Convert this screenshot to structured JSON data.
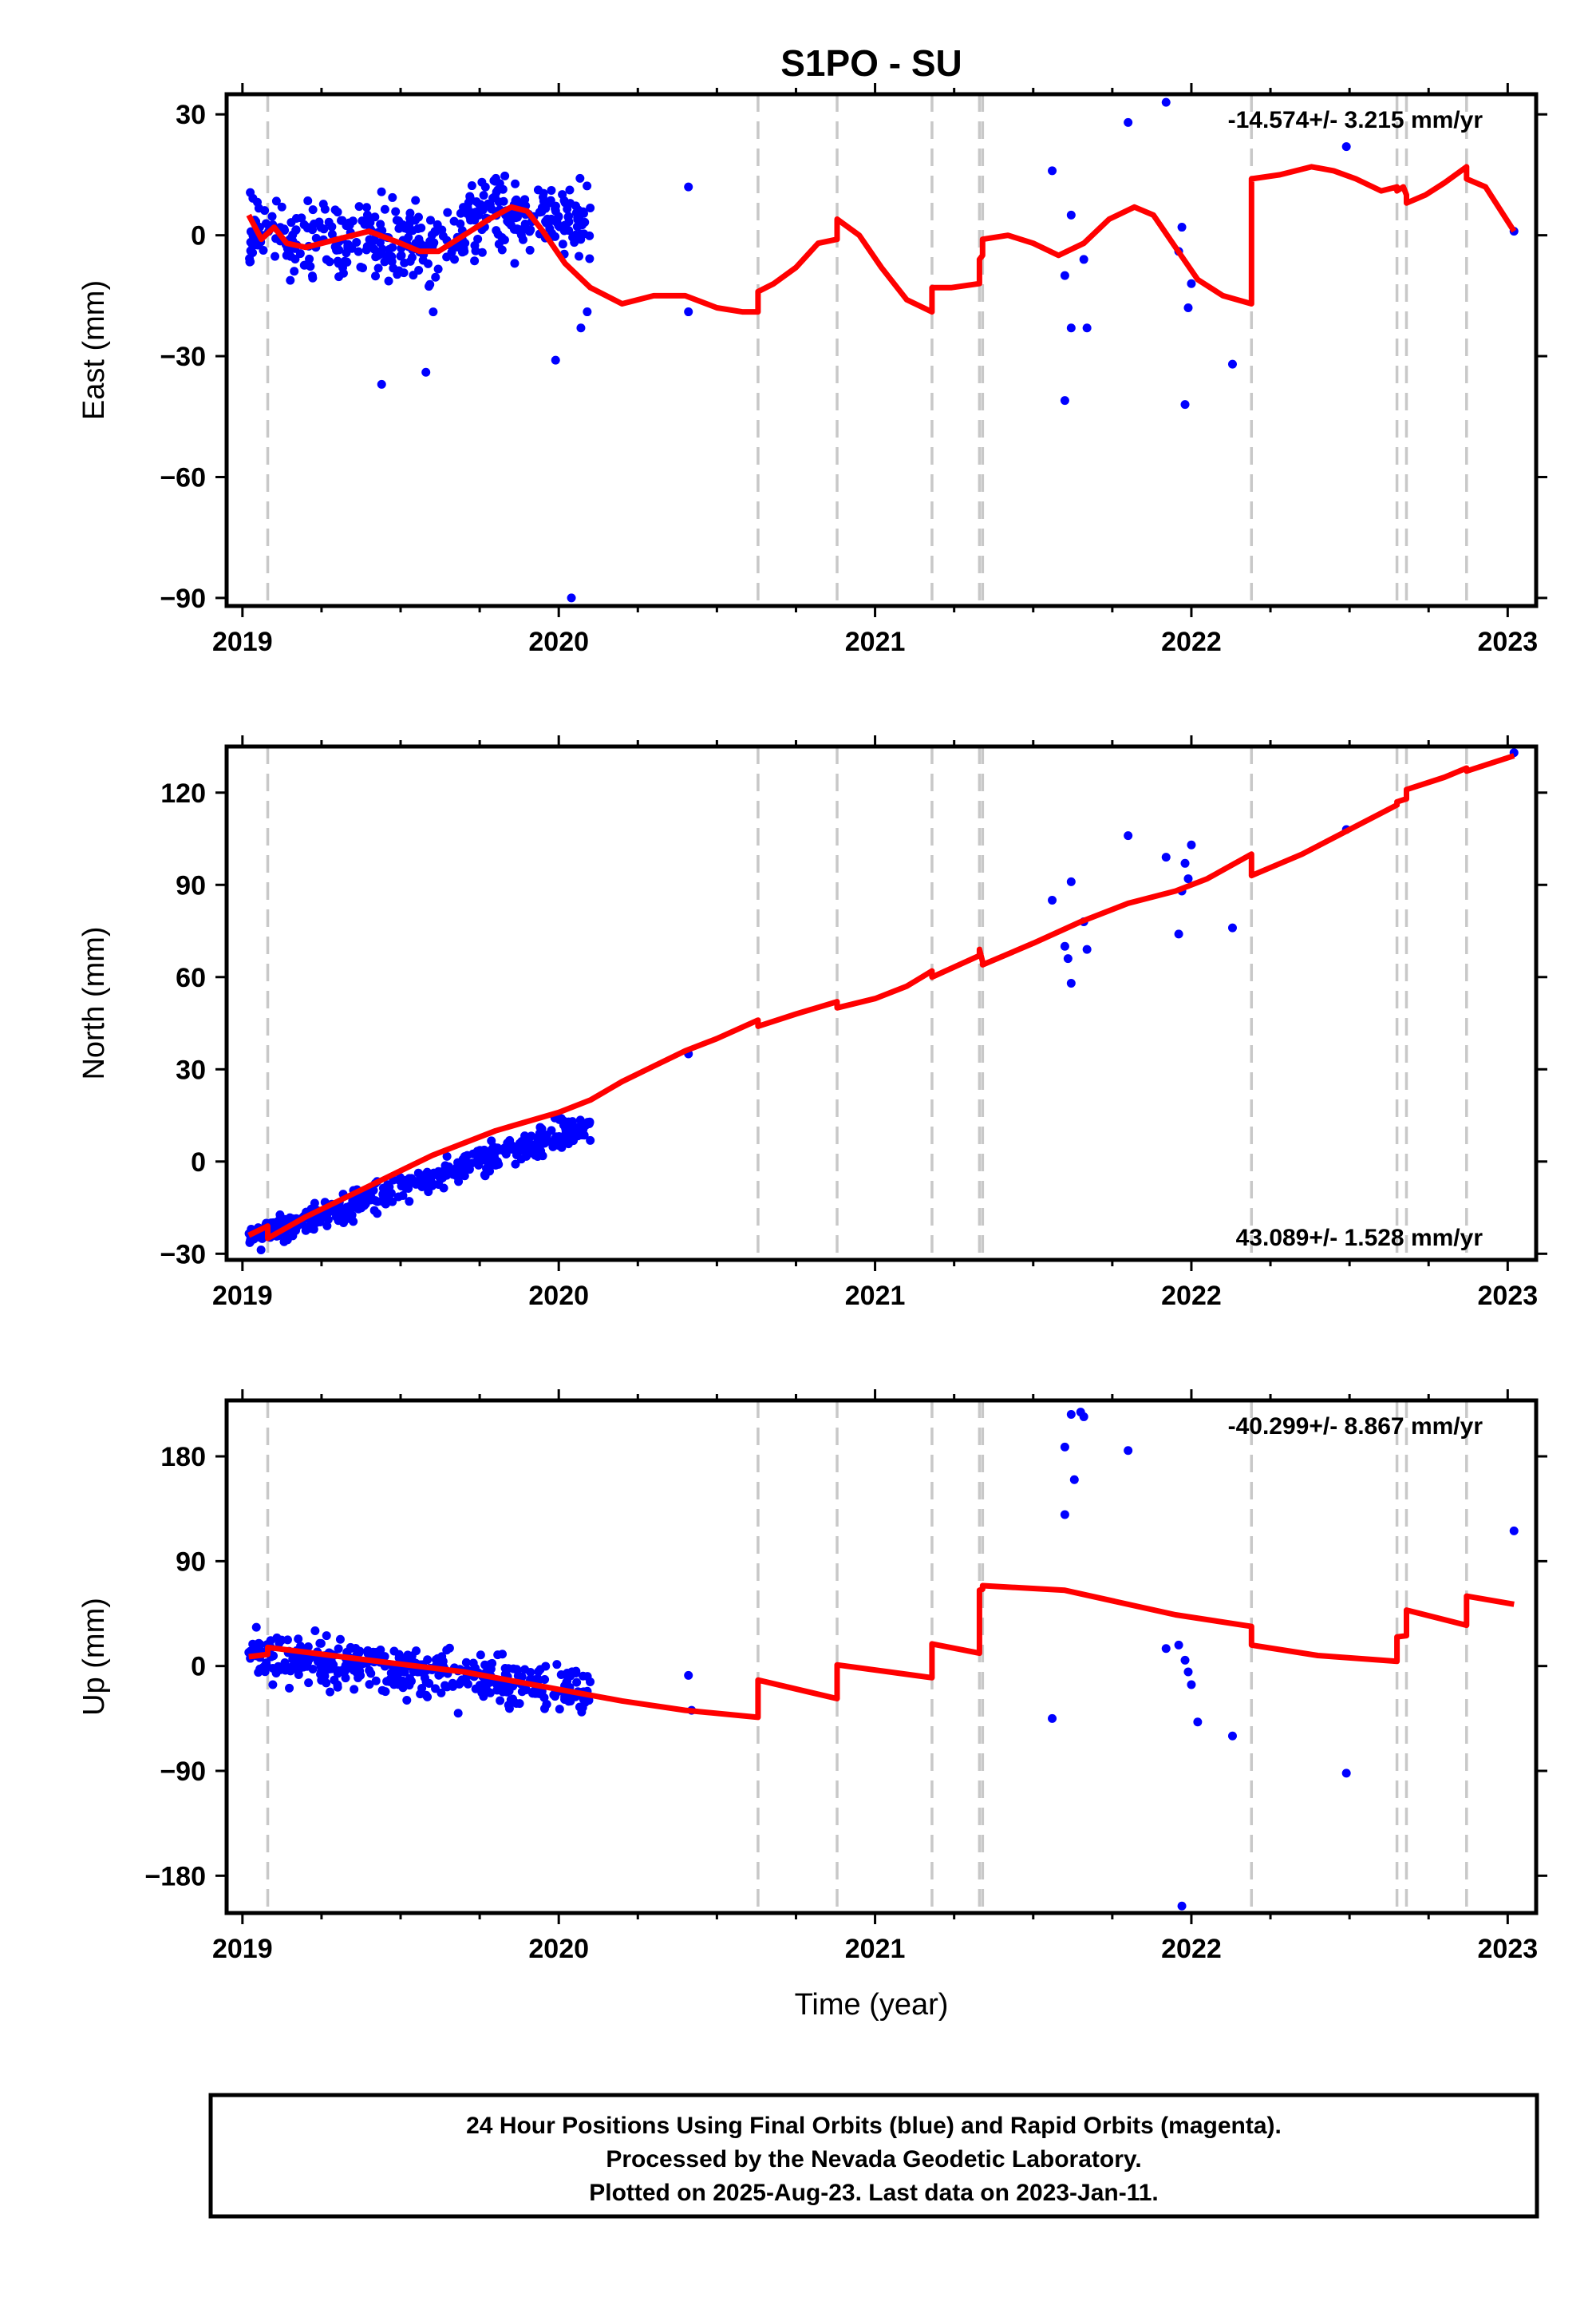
{
  "title": "S1PO - SU",
  "xlabel": "Time (year)",
  "footer": {
    "lines": [
      "24 Hour Positions Using Final Orbits (blue) and Rapid Orbits (magenta).",
      "Processed by the Nevada Geodetic Laboratory.",
      "Plotted on 2025-Aug-23. Last data on 2023-Jan-11."
    ]
  },
  "colors": {
    "points": "#0000ff",
    "model": "#ff0000",
    "breaks": "#c8c8c8",
    "frame": "#000000"
  },
  "chart_data": [
    {
      "type": "scatter",
      "ylabel": "East (mm)",
      "rate": "-14.574+/- 3.215 mm/yr",
      "rate_position": "top-right",
      "xlim": [
        2018.95,
        2023.09
      ],
      "ylim": [
        -92,
        35
      ],
      "xticks": [
        2019,
        2020,
        2021,
        2022,
        2023
      ],
      "xtick_labels": [
        "2019",
        "2020",
        "2021",
        "2022",
        "2023"
      ],
      "yticks": [
        30,
        0,
        -30,
        -60,
        -90
      ],
      "ytick_labels": [
        "30",
        "0",
        "−30",
        "−60",
        "−90"
      ],
      "breaks": [
        2019.08,
        2020.63,
        2020.88,
        2021.18,
        2021.33,
        2021.34,
        2022.19,
        2022.65,
        2022.68,
        2022.87
      ],
      "cluster": {
        "x_range": [
          2019.02,
          2020.1
        ],
        "knots_x": [
          2019.02,
          2019.2,
          2019.4,
          2019.6,
          2019.8,
          2019.95,
          2020.1
        ],
        "knots_y": [
          2,
          -2,
          0,
          -4,
          6,
          4,
          3
        ],
        "spread": 7,
        "count": 420
      },
      "outliers": [
        {
          "x": 2019.44,
          "y": -37
        },
        {
          "x": 2019.58,
          "y": -34
        },
        {
          "x": 2019.99,
          "y": -31
        },
        {
          "x": 2020.04,
          "y": -90
        },
        {
          "x": 2020.07,
          "y": -23
        },
        {
          "x": 2020.09,
          "y": -19
        },
        {
          "x": 2020.41,
          "y": 12
        },
        {
          "x": 2020.41,
          "y": -19
        },
        {
          "x": 2021.56,
          "y": 16
        },
        {
          "x": 2021.6,
          "y": -10
        },
        {
          "x": 2021.62,
          "y": 5
        },
        {
          "x": 2021.6,
          "y": -41
        },
        {
          "x": 2021.62,
          "y": -23
        },
        {
          "x": 2021.66,
          "y": -6
        },
        {
          "x": 2021.67,
          "y": -23
        },
        {
          "x": 2021.8,
          "y": 28
        },
        {
          "x": 2021.92,
          "y": 33
        },
        {
          "x": 2021.96,
          "y": -4
        },
        {
          "x": 2021.97,
          "y": 2
        },
        {
          "x": 2021.98,
          "y": -42
        },
        {
          "x": 2021.99,
          "y": -18
        },
        {
          "x": 2022.0,
          "y": -12
        },
        {
          "x": 2022.13,
          "y": -32
        },
        {
          "x": 2022.49,
          "y": 22
        },
        {
          "x": 2023.02,
          "y": 1
        }
      ],
      "model": {
        "x": [
          2019.02,
          2019.06,
          2019.1,
          2019.14,
          2019.2,
          2019.3,
          2019.4,
          2019.5,
          2019.56,
          2019.62,
          2019.7,
          2019.78,
          2019.85,
          2019.9,
          2019.95,
          2020.02,
          2020.1,
          2020.2,
          2020.3,
          2020.4,
          2020.5,
          2020.58,
          2020.63,
          2020.63,
          2020.68,
          2020.75,
          2020.82,
          2020.88,
          2020.88,
          2020.95,
          2021.02,
          2021.1,
          2021.18,
          2021.18,
          2021.24,
          2021.33,
          2021.33,
          2021.34,
          2021.34,
          2021.42,
          2021.5,
          2021.58,
          2021.66,
          2021.74,
          2021.82,
          2021.88,
          2021.95,
          2022.02,
          2022.1,
          2022.19,
          2022.19,
          2022.28,
          2022.38,
          2022.45,
          2022.52,
          2022.6,
          2022.65,
          2022.65,
          2022.67,
          2022.68,
          2022.68,
          2022.74,
          2022.8,
          2022.87,
          2022.87,
          2022.93,
          2023.02
        ],
        "y": [
          5,
          -1,
          2,
          -2,
          -3,
          -1,
          1,
          -2,
          -4,
          -4,
          0,
          4,
          7,
          6,
          1,
          -7,
          -13,
          -17,
          -15,
          -15,
          -18,
          -19,
          -19,
          -14,
          -12,
          -8,
          -2,
          -1,
          4,
          0,
          -8,
          -16,
          -19,
          -13,
          -13,
          -12,
          -6,
          -5,
          -1,
          0,
          -2,
          -5,
          -2,
          4,
          7,
          5,
          -3,
          -11,
          -15,
          -17,
          14,
          15,
          17,
          16,
          14,
          11,
          12,
          11,
          12,
          10,
          8,
          10,
          13,
          17,
          14,
          12,
          1
        ]
      }
    },
    {
      "type": "scatter",
      "ylabel": "North (mm)",
      "rate": "43.089+/- 1.528 mm/yr",
      "rate_position": "bottom-right",
      "xlim": [
        2018.95,
        2023.09
      ],
      "ylim": [
        -32,
        135
      ],
      "xticks": [
        2019,
        2020,
        2021,
        2022,
        2023
      ],
      "xtick_labels": [
        "2019",
        "2020",
        "2021",
        "2022",
        "2023"
      ],
      "yticks": [
        120,
        90,
        60,
        30,
        0,
        -30
      ],
      "ytick_labels": [
        "120",
        "90",
        "60",
        "30",
        "0",
        "−30"
      ],
      "breaks": [
        2019.08,
        2020.63,
        2020.88,
        2021.18,
        2021.33,
        2021.34,
        2022.19,
        2022.65,
        2022.68,
        2022.87
      ],
      "cluster": {
        "x_range": [
          2019.02,
          2020.1
        ],
        "knots_x": [
          2019.02,
          2020.1
        ],
        "knots_y": [
          -25,
          12
        ],
        "spread": 3.2,
        "count": 420
      },
      "outliers": [
        {
          "x": 2020.41,
          "y": 35
        },
        {
          "x": 2021.56,
          "y": 85
        },
        {
          "x": 2021.6,
          "y": 70
        },
        {
          "x": 2021.61,
          "y": 66
        },
        {
          "x": 2021.62,
          "y": 91
        },
        {
          "x": 2021.62,
          "y": 58
        },
        {
          "x": 2021.66,
          "y": 78
        },
        {
          "x": 2021.67,
          "y": 69
        },
        {
          "x": 2021.8,
          "y": 106
        },
        {
          "x": 2021.92,
          "y": 99
        },
        {
          "x": 2021.96,
          "y": 74
        },
        {
          "x": 2021.97,
          "y": 88
        },
        {
          "x": 2021.98,
          "y": 97
        },
        {
          "x": 2021.99,
          "y": 92
        },
        {
          "x": 2022.0,
          "y": 103
        },
        {
          "x": 2022.13,
          "y": 76
        },
        {
          "x": 2022.49,
          "y": 108
        },
        {
          "x": 2023.02,
          "y": 133
        }
      ],
      "model": {
        "x": [
          2019.02,
          2019.08,
          2019.08,
          2019.2,
          2019.4,
          2019.6,
          2019.8,
          2020.0,
          2020.1,
          2020.2,
          2020.3,
          2020.4,
          2020.5,
          2020.63,
          2020.63,
          2020.75,
          2020.88,
          2020.88,
          2021.0,
          2021.1,
          2021.18,
          2021.18,
          2021.33,
          2021.33,
          2021.34,
          2021.34,
          2021.5,
          2021.65,
          2021.8,
          2021.95,
          2022.05,
          2022.19,
          2022.19,
          2022.35,
          2022.5,
          2022.65,
          2022.65,
          2022.68,
          2022.68,
          2022.8,
          2022.87,
          2022.87,
          2023.02
        ],
        "y": [
          -24,
          -21,
          -25,
          -18,
          -8,
          2,
          10,
          16,
          20,
          26,
          31,
          36,
          40,
          46,
          44,
          48,
          52,
          50,
          53,
          57,
          62,
          60,
          67,
          69,
          65,
          64,
          71,
          78,
          84,
          88,
          92,
          100,
          93,
          100,
          108,
          116,
          117,
          118,
          121,
          125,
          128,
          127,
          132
        ]
      }
    },
    {
      "type": "scatter",
      "ylabel": "Up (mm)",
      "rate": "-40.299+/- 8.867 mm/yr",
      "rate_position": "top-right",
      "xlim": [
        2018.95,
        2023.09
      ],
      "ylim": [
        -212,
        228
      ],
      "xticks": [
        2019,
        2020,
        2021,
        2022,
        2023
      ],
      "xtick_labels": [
        "2019",
        "2020",
        "2021",
        "2022",
        "2023"
      ],
      "yticks": [
        180,
        90,
        0,
        -90,
        -180
      ],
      "ytick_labels": [
        "180",
        "90",
        "0",
        "−90",
        "−180"
      ],
      "breaks": [
        2019.08,
        2020.63,
        2020.88,
        2021.18,
        2021.33,
        2021.34,
        2022.19,
        2022.65,
        2022.68,
        2022.87
      ],
      "cluster": {
        "x_range": [
          2019.02,
          2020.1
        ],
        "knots_x": [
          2019.02,
          2020.1
        ],
        "knots_y": [
          12,
          -22
        ],
        "spread": 14,
        "count": 420
      },
      "outliers": [
        {
          "x": 2020.41,
          "y": -8
        },
        {
          "x": 2020.42,
          "y": -38
        },
        {
          "x": 2021.56,
          "y": -45
        },
        {
          "x": 2021.6,
          "y": 188
        },
        {
          "x": 2021.6,
          "y": 130
        },
        {
          "x": 2021.62,
          "y": 216
        },
        {
          "x": 2021.63,
          "y": 160
        },
        {
          "x": 2021.65,
          "y": 218
        },
        {
          "x": 2021.66,
          "y": 214
        },
        {
          "x": 2021.8,
          "y": 185
        },
        {
          "x": 2021.92,
          "y": 15
        },
        {
          "x": 2021.96,
          "y": 18
        },
        {
          "x": 2021.97,
          "y": -206
        },
        {
          "x": 2021.98,
          "y": 5
        },
        {
          "x": 2021.99,
          "y": -5
        },
        {
          "x": 2022.0,
          "y": -16
        },
        {
          "x": 2022.02,
          "y": -48
        },
        {
          "x": 2022.13,
          "y": -60
        },
        {
          "x": 2022.49,
          "y": -92
        },
        {
          "x": 2023.02,
          "y": 116
        }
      ],
      "model": {
        "x": [
          2019.02,
          2019.08,
          2019.08,
          2019.4,
          2019.7,
          2020.0,
          2020.2,
          2020.4,
          2020.63,
          2020.63,
          2020.88,
          2020.88,
          2021.18,
          2021.18,
          2021.33,
          2021.33,
          2021.34,
          2021.34,
          2021.6,
          2021.95,
          2022.19,
          2022.19,
          2022.4,
          2022.65,
          2022.65,
          2022.68,
          2022.68,
          2022.87,
          2022.87,
          2023.02
        ],
        "y": [
          8,
          10,
          16,
          5,
          -5,
          -20,
          -30,
          -38,
          -44,
          -12,
          -28,
          1,
          -10,
          19,
          11,
          65,
          66,
          69,
          65,
          44,
          34,
          18,
          9,
          4,
          25,
          26,
          48,
          35,
          60,
          53
        ]
      }
    }
  ]
}
